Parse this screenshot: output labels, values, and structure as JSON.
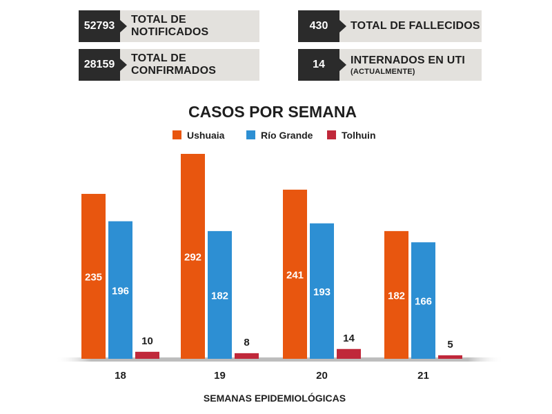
{
  "stats": [
    {
      "value": "52793",
      "label": "TOTAL DE NOTIFICADOS",
      "sub": ""
    },
    {
      "value": "28159",
      "label": "TOTAL DE CONFIRMADOS",
      "sub": ""
    },
    {
      "value": "430",
      "label": "TOTAL DE FALLECIDOS",
      "sub": ""
    },
    {
      "value": "14",
      "label": "INTERNADOS EN UTI",
      "sub": "(ACTUALMENTE)"
    }
  ],
  "chart_data": {
    "type": "bar",
    "title": "CASOS POR SEMANA",
    "xlabel": "SEMANAS EPIDEMIOLÓGICAS",
    "ylabel": "",
    "ylim": [
      0,
      300
    ],
    "grid": false,
    "legend_position": "top",
    "categories": [
      "18",
      "19",
      "20",
      "21"
    ],
    "series": [
      {
        "name": "Ushuaia",
        "color": "#e8560f",
        "values": [
          235,
          292,
          241,
          182
        ]
      },
      {
        "name": "Río Grande",
        "color": "#2d8fd3",
        "values": [
          196,
          182,
          193,
          166
        ]
      },
      {
        "name": "Tolhuin",
        "color": "#c0283a",
        "values": [
          10,
          8,
          14,
          5
        ]
      }
    ]
  }
}
